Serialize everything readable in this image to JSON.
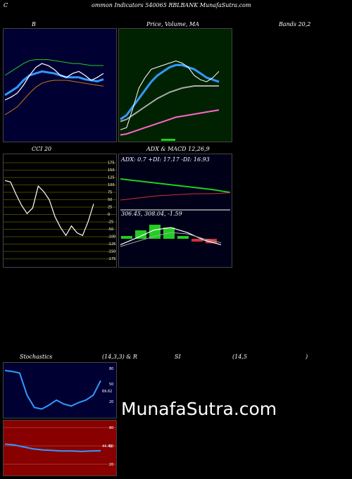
{
  "header": {
    "title_left": "C",
    "title_main": "ommon  Indicators 540065 RBLBANK MunafaSutra.com"
  },
  "bollinger": {
    "title": "B",
    "title_right": "Bands 20,2"
  },
  "price_ma": {
    "title": "Price,  Volume,  MA"
  },
  "cci": {
    "title": "CCI 20",
    "ticks": [
      "175",
      "150",
      "125",
      "100",
      "75",
      "50",
      "25",
      "0",
      "-25",
      "-50",
      "-100",
      "-125",
      "-150",
      "-175"
    ]
  },
  "adx": {
    "title": "ADX  & MACD 12,26,9",
    "readout": "ADX: 0.7  +DI: 17.17 -DI: 16.93"
  },
  "macd": {
    "readout": "306.45,  308.04,  -1.59"
  },
  "stoch": {
    "title_left": "Stochastics",
    "title_mid": "(14,3,3) & R",
    "title_rsi": "SI",
    "title_param": "(14,5",
    "title_close": ")",
    "ticks": [
      "80",
      "50",
      "20"
    ],
    "value_label": "69.62"
  },
  "rsi": {
    "ticks": [
      "80",
      "50",
      "20"
    ],
    "value_label": "44.42"
  },
  "watermark": "MunafaSutra.com",
  "colors": {
    "bb_bg": "#000033",
    "price_bg": "#002200",
    "cci_bg": "#000000",
    "adx_bg": "#000018",
    "stoch_bg": "#000033",
    "rsi_bg": "#880000",
    "blue": "#3399ff",
    "green": "#22cc22",
    "orange": "#cc7711",
    "white": "#ffffff"
  },
  "chart_data": [
    {
      "type": "line",
      "title": "Bollinger Bands 20,2",
      "series": [
        {
          "values": [
            35,
            38,
            42,
            50,
            60,
            68,
            72,
            70,
            66,
            60,
            58,
            62,
            64,
            60,
            55,
            58,
            62
          ]
        },
        {
          "values": [
            40,
            44,
            48,
            55,
            60,
            62,
            64,
            63,
            62,
            60,
            58,
            58,
            58,
            56,
            55,
            54,
            56
          ]
        },
        {
          "values": [
            60,
            64,
            68,
            72,
            75,
            76,
            76,
            76,
            75,
            74,
            73,
            72,
            72,
            71,
            70,
            70,
            70
          ]
        },
        {
          "values": [
            20,
            24,
            28,
            35,
            42,
            48,
            52,
            54,
            55,
            55,
            55,
            54,
            53,
            52,
            51,
            50,
            49
          ]
        }
      ]
    },
    {
      "type": "line",
      "title": "Price, Volume, MA",
      "series": [
        {
          "values": [
            10,
            12,
            30,
            50,
            60,
            68,
            70,
            72,
            74,
            76,
            74,
            70,
            62,
            58,
            56,
            60,
            66
          ]
        },
        {
          "values": [
            20,
            24,
            32,
            40,
            48,
            56,
            62,
            66,
            70,
            72,
            72,
            70,
            68,
            64,
            60,
            58,
            56
          ]
        },
        {
          "values": [
            18,
            20,
            24,
            28,
            32,
            36,
            40,
            43,
            46,
            48,
            50,
            51,
            52,
            52,
            52,
            52,
            52
          ]
        },
        {
          "values": [
            5,
            6,
            8,
            10,
            12,
            14,
            16,
            18,
            20,
            22,
            23,
            24,
            25,
            26,
            27,
            28,
            29
          ]
        }
      ]
    },
    {
      "type": "line",
      "title": "CCI 20",
      "ylim": [
        -175,
        175
      ],
      "series": [
        {
          "values": [
            110,
            105,
            60,
            20,
            -10,
            10,
            90,
            70,
            40,
            -20,
            -60,
            -90,
            -55,
            -80,
            -90,
            -40,
            25
          ]
        }
      ]
    },
    {
      "type": "line",
      "title": "ADX & MACD 12,26,9",
      "series": [
        {
          "name": "ADX",
          "values": [
            0.7,
            0.7,
            0.7,
            0.7,
            0.7,
            0.7,
            0.7
          ]
        },
        {
          "name": "+DI",
          "values": [
            30,
            28,
            26,
            24,
            22,
            20,
            17.17
          ]
        },
        {
          "name": "-DI",
          "values": [
            10,
            12,
            14,
            15,
            16,
            16,
            16.93
          ]
        },
        {
          "values": [
            306.45,
            312,
            318,
            320,
            316,
            310,
            306.45
          ]
        },
        {
          "values": [
            305,
            309,
            313,
            316,
            315,
            311,
            308.04
          ]
        },
        {
          "values": [
            1,
            3,
            5,
            4,
            1,
            -1,
            -1.59
          ]
        }
      ]
    },
    {
      "type": "line",
      "title": "Stochastics (14,3,3)",
      "ylim": [
        0,
        100
      ],
      "series": [
        {
          "values": [
            90,
            88,
            85,
            40,
            15,
            12,
            20,
            30,
            22,
            18,
            25,
            30,
            40,
            69.62
          ]
        }
      ]
    },
    {
      "type": "line",
      "title": "RSI (14,5)",
      "ylim": [
        0,
        100
      ],
      "series": [
        {
          "values": [
            58,
            56,
            52,
            48,
            46,
            45,
            44,
            44,
            43,
            44,
            44.42
          ]
        }
      ]
    }
  ]
}
